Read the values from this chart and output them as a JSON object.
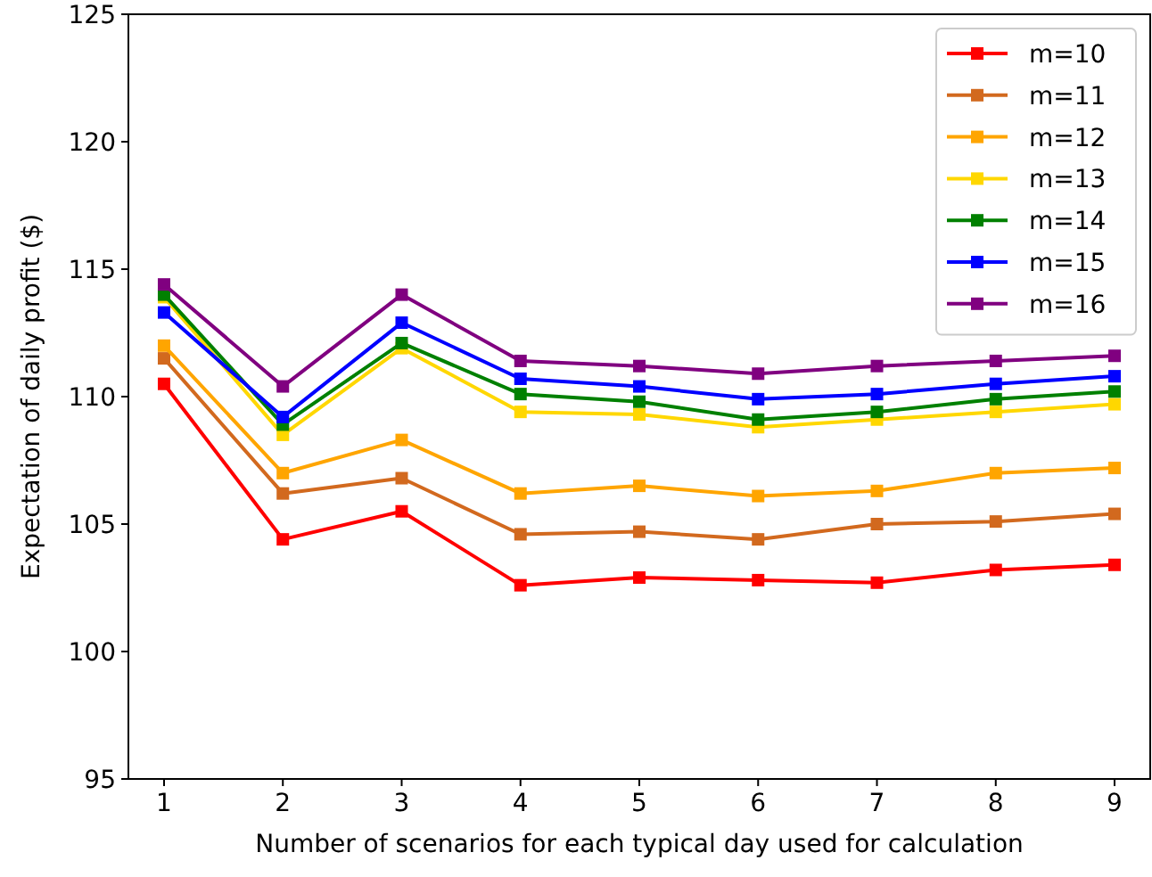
{
  "chart_data": {
    "type": "line",
    "xlabel": "Number of scenarios for each typical day used for calculation",
    "ylabel": "Expectation of daily profit ($)",
    "x": [
      1,
      2,
      3,
      4,
      5,
      6,
      7,
      8,
      9
    ],
    "xlim": [
      0.7,
      9.3
    ],
    "xticks": [
      1,
      2,
      3,
      4,
      5,
      6,
      7,
      8,
      9
    ],
    "ylim": [
      95,
      125
    ],
    "yticks": [
      95,
      100,
      105,
      110,
      115,
      120,
      125
    ],
    "grid": false,
    "legend": "top right",
    "marker": "square",
    "line_style": "solid",
    "series": [
      {
        "name": "m=10",
        "color": "#ff0000",
        "values": [
          110.5,
          104.4,
          105.5,
          102.6,
          102.9,
          102.8,
          102.7,
          103.2,
          103.4
        ]
      },
      {
        "name": "m=11",
        "color": "#d2691e",
        "values": [
          111.5,
          106.2,
          106.8,
          104.6,
          104.7,
          104.4,
          105.0,
          105.1,
          105.4
        ]
      },
      {
        "name": "m=12",
        "color": "#ffa500",
        "values": [
          112.0,
          107.0,
          108.3,
          106.2,
          106.5,
          106.1,
          106.3,
          107.0,
          107.2
        ]
      },
      {
        "name": "m=13",
        "color": "#ffd700",
        "values": [
          113.9,
          108.5,
          111.9,
          109.4,
          109.3,
          108.8,
          109.1,
          109.4,
          109.7
        ]
      },
      {
        "name": "m=14",
        "color": "#008000",
        "values": [
          114.0,
          108.9,
          112.1,
          110.1,
          109.8,
          109.1,
          109.4,
          109.9,
          110.2
        ]
      },
      {
        "name": "m=15",
        "color": "#0000ff",
        "values": [
          113.3,
          109.2,
          112.9,
          110.7,
          110.4,
          109.9,
          110.1,
          110.5,
          110.8
        ]
      },
      {
        "name": "m=16",
        "color": "#800080",
        "values": [
          114.4,
          110.4,
          114.0,
          111.4,
          111.2,
          110.9,
          111.2,
          111.4,
          111.6
        ]
      }
    ]
  }
}
